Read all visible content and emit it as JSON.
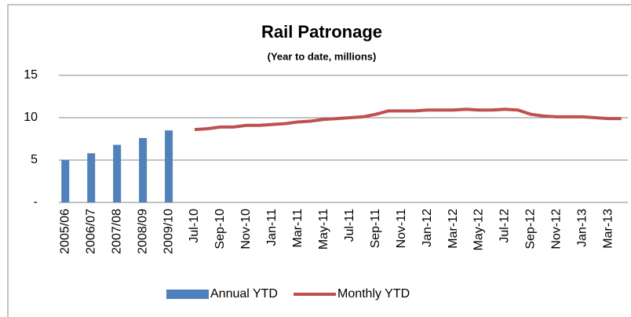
{
  "chart_data": {
    "type": "bar-line",
    "title": "Rail Patronage",
    "subtitle": "(Year to date, millions)",
    "categories": [
      "2005/06",
      null,
      "2006/07",
      null,
      "2007/08",
      null,
      "2008/09",
      null,
      "2009/10",
      null,
      "Jul-10",
      null,
      "Sep-10",
      null,
      "Nov-10",
      null,
      "Jan-11",
      null,
      "Mar-11",
      null,
      "May-11",
      null,
      "Jul-11",
      null,
      "Sep-11",
      null,
      "Nov-11",
      null,
      "Jan-12",
      null,
      "Mar-12",
      null,
      "May-12",
      null,
      "Jul-12",
      null,
      "Sep-12",
      null,
      "Nov-12",
      null,
      "Jan-13",
      null,
      "Mar-13",
      null
    ],
    "series": [
      {
        "name": "Annual YTD",
        "type": "bar",
        "color": "#4f81bd",
        "values": [
          5.0,
          null,
          5.8,
          null,
          6.8,
          null,
          7.6,
          null,
          8.5,
          null,
          null,
          null,
          null,
          null,
          null,
          null,
          null,
          null,
          null,
          null,
          null,
          null,
          null,
          null,
          null,
          null,
          null,
          null,
          null,
          null,
          null,
          null,
          null,
          null,
          null,
          null,
          null,
          null,
          null,
          null,
          null,
          null,
          null,
          null
        ]
      },
      {
        "name": "Monthly YTD",
        "type": "line",
        "color": "#c0504d",
        "values": [
          null,
          null,
          null,
          null,
          null,
          null,
          null,
          null,
          null,
          null,
          8.6,
          8.7,
          8.9,
          8.9,
          9.1,
          9.1,
          9.2,
          9.3,
          9.5,
          9.6,
          9.8,
          9.9,
          10.0,
          10.1,
          10.4,
          10.8,
          10.8,
          10.8,
          10.9,
          10.9,
          10.9,
          11.0,
          10.9,
          10.9,
          11.0,
          10.9,
          10.4,
          10.2,
          10.1,
          10.1,
          10.1,
          10.0,
          9.9,
          9.9
        ]
      }
    ],
    "ylim": [
      0,
      15
    ],
    "yticks": [
      {
        "value": 0,
        "label": "-"
      },
      5,
      10,
      15
    ],
    "grid": true,
    "legend": "bottom"
  }
}
